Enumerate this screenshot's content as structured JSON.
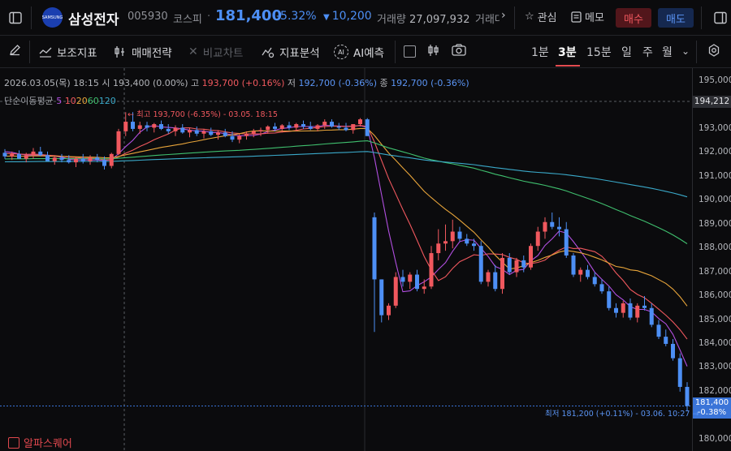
{
  "stock": {
    "name": "삼성전자",
    "code": "005930",
    "market": "코스피",
    "price": "181,400",
    "change_pct": "-5.32%",
    "change": "10,200",
    "volume_label": "거래량",
    "volume": "27,097,932",
    "value_label_cut": "거래대"
  },
  "header": {
    "logo_text": "SAMSUNG",
    "favorite_label": "관심",
    "memo_label": "메모",
    "buy_label": "매수",
    "sell_label": "매도"
  },
  "toolbar": {
    "indicators": "보조지표",
    "strategy": "매매전략",
    "compare": "비교차트",
    "analysis": "지표분석",
    "ai_forecast": "AI예측",
    "ai_badge": "AI",
    "timeframes": [
      "1분",
      "3분",
      "15분",
      "일",
      "주",
      "월"
    ],
    "active_timeframe": "3분"
  },
  "info": {
    "datetime": "2026.03.05(목) 18:15",
    "open_label": "시",
    "open": "193,400 (0.00%)",
    "high_label": "고",
    "high": "193,700 (+0.16%)",
    "low_label": "저",
    "low": "192,700 (-0.36%)",
    "close_label": "종",
    "close": "192,700 (-0.36%)"
  },
  "ma": {
    "label": "단순이동평균",
    "periods": [
      "5",
      "10",
      "20",
      "60",
      "120"
    ],
    "colors": [
      "#b14fe0",
      "#f0585e",
      "#e7a43a",
      "#3fbf6e",
      "#3aa9c9"
    ]
  },
  "annotations": {
    "high_note": "최고 193,700 (-6.35%) - 03.05. 18:15",
    "low_note": "최저 181,200 (+0.11%) - 03.06. 10:27"
  },
  "yaxis": {
    "ticks": [
      "195,000",
      "194,000",
      "193,000",
      "192,000",
      "191,000",
      "190,000",
      "189,000",
      "188,000",
      "187,000",
      "186,000",
      "185,000",
      "184,000",
      "183,000",
      "182,000",
      "181,000",
      "180,000"
    ],
    "crosshair_price": "194,212",
    "last_price": "181,400",
    "last_pct": "-0.38%"
  },
  "colors": {
    "up": "#f0585e",
    "down": "#4d8ff5",
    "accent": "#e34b50"
  },
  "brand": "알파스퀘어",
  "chart_data": {
    "type": "candlestick",
    "interval": "3분",
    "ylim": [
      180000,
      195000
    ],
    "ohlc": [
      [
        192000,
        192150,
        191750,
        191850
      ],
      [
        191850,
        192050,
        191700,
        191950
      ],
      [
        191950,
        192100,
        191800,
        191750
      ],
      [
        191750,
        192000,
        191600,
        191900
      ],
      [
        191900,
        192200,
        191750,
        192050
      ],
      [
        192050,
        192250,
        191850,
        191900
      ],
      [
        191900,
        192050,
        191700,
        191650
      ],
      [
        191650,
        191900,
        191500,
        191800
      ],
      [
        191800,
        191950,
        191600,
        191700
      ],
      [
        191700,
        191900,
        191550,
        191600
      ],
      [
        191600,
        191800,
        191400,
        191750
      ],
      [
        191750,
        191950,
        191550,
        191650
      ],
      [
        191650,
        191900,
        191500,
        191800
      ],
      [
        191800,
        191950,
        191600,
        191700
      ],
      [
        191700,
        191850,
        191300,
        191450
      ],
      [
        191450,
        192000,
        191350,
        191950
      ],
      [
        191950,
        193000,
        191900,
        192900
      ],
      [
        192900,
        193700,
        192700,
        193300
      ],
      [
        193300,
        193700,
        192900,
        193000
      ],
      [
        193000,
        193300,
        192800,
        193150
      ],
      [
        193150,
        193300,
        192900,
        193050
      ],
      [
        193050,
        193250,
        192850,
        193200
      ],
      [
        193200,
        193350,
        192950,
        193000
      ],
      [
        193000,
        193200,
        192800,
        192900
      ],
      [
        192900,
        193150,
        192700,
        193050
      ],
      [
        193050,
        193200,
        192800,
        192850
      ],
      [
        192850,
        193050,
        192650,
        192950
      ],
      [
        192950,
        193100,
        192700,
        192800
      ],
      [
        192800,
        193000,
        192600,
        192900
      ],
      [
        192900,
        193050,
        192700,
        192750
      ],
      [
        192750,
        192950,
        192550,
        192850
      ],
      [
        192850,
        193000,
        192650,
        192700
      ],
      [
        192700,
        192900,
        192450,
        192550
      ],
      [
        192550,
        192800,
        192400,
        192700
      ],
      [
        192700,
        192900,
        192550,
        192800
      ],
      [
        192800,
        193000,
        192650,
        192900
      ],
      [
        192900,
        193050,
        192700,
        192950
      ],
      [
        192950,
        193150,
        192800,
        193100
      ],
      [
        193100,
        193250,
        192900,
        193000
      ],
      [
        193000,
        193200,
        192850,
        193150
      ],
      [
        193150,
        193300,
        192950,
        193050
      ],
      [
        193050,
        193250,
        192900,
        193200
      ],
      [
        193200,
        193350,
        193000,
        193100
      ],
      [
        193100,
        193300,
        192950,
        193000
      ],
      [
        193000,
        193200,
        192900,
        193150
      ],
      [
        193150,
        193400,
        193000,
        193300
      ],
      [
        193300,
        193400,
        193050,
        193100
      ],
      [
        193100,
        193250,
        192950,
        193050
      ],
      [
        193050,
        193250,
        192900,
        192950
      ],
      [
        192950,
        193100,
        192800,
        193200
      ],
      [
        193200,
        193450,
        193100,
        193400
      ],
      [
        193400,
        193450,
        192700,
        192700
      ],
      [
        189300,
        189500,
        184500,
        186700
      ],
      [
        186700,
        186700,
        184900,
        185200
      ],
      [
        185200,
        185700,
        185000,
        185600
      ],
      [
        185600,
        187000,
        185500,
        186800
      ],
      [
        186800,
        187100,
        186400,
        186600
      ],
      [
        186600,
        187000,
        186300,
        186900
      ],
      [
        186900,
        187100,
        186200,
        186300
      ],
      [
        186300,
        186700,
        186100,
        186400
      ],
      [
        186400,
        188100,
        186300,
        187800
      ],
      [
        187800,
        188800,
        187500,
        188200
      ],
      [
        188200,
        189000,
        187900,
        188300
      ],
      [
        188300,
        189200,
        188000,
        188700
      ],
      [
        188700,
        188900,
        188300,
        188400
      ],
      [
        188400,
        188600,
        188100,
        188200
      ],
      [
        188200,
        188400,
        187900,
        188100
      ],
      [
        188100,
        188300,
        186500,
        186600
      ],
      [
        186600,
        187100,
        186400,
        187000
      ],
      [
        187000,
        187300,
        186200,
        186300
      ],
      [
        186300,
        187800,
        186100,
        187600
      ],
      [
        187600,
        187800,
        186900,
        187000
      ],
      [
        187000,
        187600,
        186800,
        187500
      ],
      [
        187500,
        187700,
        187000,
        187200
      ],
      [
        187200,
        188200,
        187100,
        188100
      ],
      [
        188100,
        188900,
        187900,
        188700
      ],
      [
        188700,
        189300,
        188400,
        189100
      ],
      [
        189100,
        189500,
        188800,
        188900
      ],
      [
        188900,
        189300,
        188500,
        188800
      ],
      [
        188800,
        189100,
        187600,
        187700
      ],
      [
        187700,
        187800,
        186800,
        186900
      ],
      [
        186900,
        187200,
        186600,
        187100
      ],
      [
        187100,
        187300,
        186700,
        186800
      ],
      [
        186800,
        187000,
        186400,
        186500
      ],
      [
        186500,
        186700,
        186100,
        186200
      ],
      [
        186200,
        186400,
        185400,
        185500
      ],
      [
        185500,
        185700,
        185100,
        185300
      ],
      [
        185300,
        185800,
        185100,
        185700
      ],
      [
        185700,
        185900,
        185000,
        185100
      ],
      [
        185100,
        185700,
        184900,
        185600
      ],
      [
        185600,
        186000,
        185400,
        185500
      ],
      [
        185500,
        185700,
        184700,
        184800
      ],
      [
        184800,
        185000,
        184200,
        184300
      ],
      [
        184300,
        184600,
        183900,
        184000
      ],
      [
        184000,
        184200,
        183300,
        183400
      ],
      [
        183400,
        183600,
        182000,
        182200
      ],
      [
        182200,
        182400,
        181200,
        181400
      ]
    ]
  }
}
